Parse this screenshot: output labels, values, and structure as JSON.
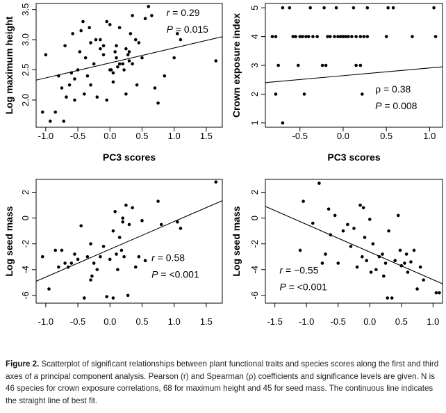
{
  "caption": {
    "label": "Figure 2.",
    "text": " Scatterplot of significant relationships between plant functional traits and species scores along the first and third axes of a principal component analysis. Pearson (r) and Spearman (ρ) coefficients and significance levels are given. N is 46 species for crown exposure correlations, 68 for maximum height and 45 for seed mass. The continuous line indicates the straight line of best fit."
  },
  "chart_data": [
    {
      "type": "scatter",
      "xlabel": "PC3 scores",
      "ylabel": "Log maximum height",
      "xlim": [
        -1.15,
        1.75
      ],
      "ylim": [
        1.55,
        3.6
      ],
      "xticks": [
        "-1.0",
        "-0.5",
        "0.0",
        "0.5",
        "1.0",
        "1.5"
      ],
      "xtick_values": [
        -1.0,
        -0.5,
        0.0,
        0.5,
        1.0,
        1.5
      ],
      "yticks": [
        "2.0",
        "2.5",
        "3.0",
        "3.5"
      ],
      "ytick_values": [
        2.0,
        2.5,
        3.0,
        3.5
      ],
      "annotations": [
        "r = 0.29",
        "P = 0.015"
      ],
      "fit_line": {
        "x": [
          -1.15,
          1.75
        ],
        "y": [
          2.33,
          3.05
        ]
      },
      "x": [
        -1.05,
        -1.0,
        -0.93,
        -0.85,
        -0.8,
        -0.7,
        -0.72,
        -0.63,
        -0.55,
        -0.58,
        -0.5,
        -0.47,
        -0.45,
        -0.42,
        -0.38,
        -0.35,
        -0.32,
        -0.3,
        -0.25,
        -0.2,
        -0.15,
        -0.1,
        -0.05,
        0.0,
        0.02,
        0.05,
        0.08,
        0.1,
        0.12,
        0.15,
        0.2,
        0.25,
        0.28,
        0.3,
        0.32,
        0.35,
        0.4,
        0.45,
        0.5,
        0.55,
        0.6,
        0.65,
        0.7,
        0.75,
        0.85,
        1.0,
        1.05,
        1.1,
        1.65,
        -0.6,
        -0.4,
        -0.15,
        0.05,
        0.22,
        0.35,
        -0.75,
        -0.68,
        -0.3,
        -0.1,
        0.15,
        0.42,
        -0.55,
        -0.22,
        0.0,
        0.25,
        -0.05,
        0.3,
        0.1
      ],
      "y": [
        1.8,
        2.75,
        1.65,
        1.8,
        2.4,
        2.9,
        1.65,
        2.25,
        2.0,
        3.1,
        2.5,
        2.8,
        3.15,
        3.3,
        2.7,
        2.4,
        3.2,
        2.25,
        2.6,
        2.05,
        3.0,
        2.9,
        3.3,
        3.25,
        2.5,
        2.45,
        2.8,
        2.7,
        2.55,
        3.2,
        2.6,
        2.1,
        2.75,
        2.8,
        3.1,
        3.4,
        3.0,
        2.95,
        2.7,
        3.35,
        3.55,
        3.4,
        2.2,
        1.95,
        2.4,
        2.7,
        3.1,
        3.0,
        2.65,
        2.45,
        2.1,
        2.85,
        2.3,
        2.5,
        2.6,
        2.2,
        2.05,
        2.95,
        2.75,
        2.6,
        2.25,
        2.35,
        3.0,
        2.5,
        2.85,
        2.0,
        2.65,
        2.9
      ]
    },
    {
      "type": "scatter",
      "xlabel": "PC3 scores",
      "ylabel": "Crown exposure index",
      "xlim": [
        -0.9,
        1.15
      ],
      "ylim": [
        0.85,
        5.15
      ],
      "xticks": [
        "-0.5",
        "0.0",
        "0.5",
        "1.0"
      ],
      "xtick_values": [
        -0.5,
        0.0,
        0.5,
        1.0
      ],
      "yticks": [
        "1",
        "2",
        "3",
        "4",
        "5"
      ],
      "ytick_values": [
        1,
        2,
        3,
        4,
        5
      ],
      "annotations": [
        "ρ = 0.38",
        "P = 0.008"
      ],
      "fit_line": {
        "x": [
          -0.9,
          1.15
        ],
        "y": [
          2.4,
          2.95
        ]
      },
      "x": [
        -0.7,
        -0.62,
        -0.38,
        -0.22,
        -0.08,
        0.12,
        0.28,
        0.52,
        0.58,
        1.05,
        -0.82,
        -0.78,
        -0.58,
        -0.55,
        -0.5,
        -0.47,
        -0.43,
        -0.4,
        -0.35,
        -0.3,
        -0.18,
        -0.15,
        -0.1,
        -0.06,
        -0.03,
        0.0,
        0.03,
        0.06,
        0.1,
        0.15,
        0.2,
        0.24,
        0.28,
        0.5,
        0.8,
        1.07,
        -0.75,
        -0.52,
        -0.24,
        -0.2,
        0.15,
        0.2,
        -0.78,
        -0.45,
        0.22,
        -0.7
      ],
      "y": [
        5,
        5,
        5,
        5,
        5,
        5,
        5,
        5,
        5,
        5,
        4,
        4,
        4,
        4,
        4,
        4,
        4,
        4,
        4,
        4,
        4,
        4,
        4,
        4,
        4,
        4,
        4,
        4,
        4,
        4,
        4,
        4,
        4,
        4,
        4,
        4,
        3,
        3,
        3,
        3,
        3,
        3,
        2,
        2,
        2,
        1
      ]
    },
    {
      "type": "scatter",
      "xlabel": "",
      "ylabel": "Log seed mass",
      "xlim": [
        -1.15,
        1.75
      ],
      "ylim": [
        -6.6,
        3.0
      ],
      "xticks": [
        "-1.0",
        "-0.5",
        "0.0",
        "0.5",
        "1.0",
        "1.5"
      ],
      "xtick_values": [
        -1.0,
        -0.5,
        0.0,
        0.5,
        1.0,
        1.5
      ],
      "yticks": [
        "-6",
        "-4",
        "-2",
        "0",
        "2"
      ],
      "ytick_values": [
        -6,
        -4,
        -2,
        0,
        2
      ],
      "annotations": [
        "r = 0.58",
        "P = <0.001"
      ],
      "fit_line": {
        "x": [
          -1.15,
          1.75
        ],
        "y": [
          -4.9,
          1.35
        ]
      },
      "x": [
        -1.05,
        -0.95,
        -0.85,
        -0.8,
        -0.75,
        -0.7,
        -0.65,
        -0.6,
        -0.55,
        -0.5,
        -0.45,
        -0.4,
        -0.35,
        -0.3,
        -0.28,
        -0.25,
        -0.2,
        -0.15,
        -0.1,
        -0.05,
        0.0,
        0.05,
        0.08,
        0.1,
        0.12,
        0.15,
        0.18,
        0.2,
        0.22,
        0.25,
        0.28,
        0.3,
        0.35,
        0.4,
        0.45,
        0.5,
        0.55,
        0.75,
        0.8,
        1.05,
        1.1,
        1.65,
        -0.3,
        0.05,
        0.2
      ],
      "y": [
        -3.0,
        -5.5,
        -2.5,
        -3.8,
        -2.5,
        -3.5,
        -3.8,
        -3.5,
        -2.8,
        -3.2,
        -0.6,
        -6.2,
        -3.0,
        -2.0,
        -4.5,
        -3.5,
        -4.0,
        -3.0,
        -2.2,
        -6.1,
        -3.2,
        -1.0,
        0.5,
        -2.8,
        -4.0,
        -1.5,
        -2.5,
        0.0,
        -3.0,
        1.0,
        -6.0,
        -0.5,
        0.8,
        -3.8,
        -3.0,
        -0.2,
        -3.3,
        1.3,
        -0.5,
        -0.3,
        -0.8,
        2.8,
        -4.8,
        -6.2,
        -0.3
      ]
    },
    {
      "type": "scatter",
      "xlabel": "",
      "ylabel": "Log seed mass",
      "xlim": [
        -1.65,
        1.15
      ],
      "ylim": [
        -6.6,
        3.0
      ],
      "xticks": [
        "-1.5",
        "-1.0",
        "-0.5",
        "0.0",
        "0.5",
        "1.0"
      ],
      "xtick_values": [
        -1.5,
        -1.0,
        -0.5,
        0.0,
        0.5,
        1.0
      ],
      "yticks": [
        "-6",
        "-4",
        "-2",
        "0",
        "2"
      ],
      "ytick_values": [
        -6,
        -4,
        -2,
        0,
        2
      ],
      "annotations": [
        "r = −0.55",
        "P = <0.001"
      ],
      "fit_line": {
        "x": [
          -1.65,
          1.15
        ],
        "y": [
          0.9,
          -5.1
        ]
      },
      "x": [
        -1.1,
        -1.05,
        -0.9,
        -0.8,
        -0.75,
        -0.7,
        -0.65,
        -0.62,
        -0.55,
        -0.5,
        -0.42,
        -0.35,
        -0.3,
        -0.25,
        -0.2,
        -0.15,
        -0.12,
        -0.1,
        -0.05,
        0.0,
        0.02,
        0.05,
        0.1,
        0.15,
        0.2,
        0.25,
        0.28,
        0.3,
        0.35,
        0.4,
        0.45,
        0.48,
        0.5,
        0.55,
        0.58,
        0.6,
        0.65,
        0.7,
        0.75,
        0.8,
        0.85,
        1.05,
        1.1,
        -0.08,
        0.22
      ],
      "y": [
        -2.5,
        1.3,
        -0.4,
        2.7,
        -3.5,
        -2.8,
        0.7,
        -1.3,
        0.2,
        -3.5,
        -1.0,
        -0.5,
        -2.2,
        -0.8,
        -3.8,
        1.0,
        -3.0,
        0.8,
        -3.3,
        -0.1,
        -4.2,
        -2.0,
        -4.0,
        -3.0,
        -2.8,
        -3.5,
        -6.2,
        -1.0,
        -6.2,
        -3.3,
        0.2,
        -2.5,
        -3.7,
        -3.5,
        -2.8,
        -4.2,
        -3.4,
        -2.5,
        -5.5,
        -3.8,
        -4.8,
        -5.8,
        -5.8,
        -1.5,
        -4.5
      ]
    }
  ]
}
